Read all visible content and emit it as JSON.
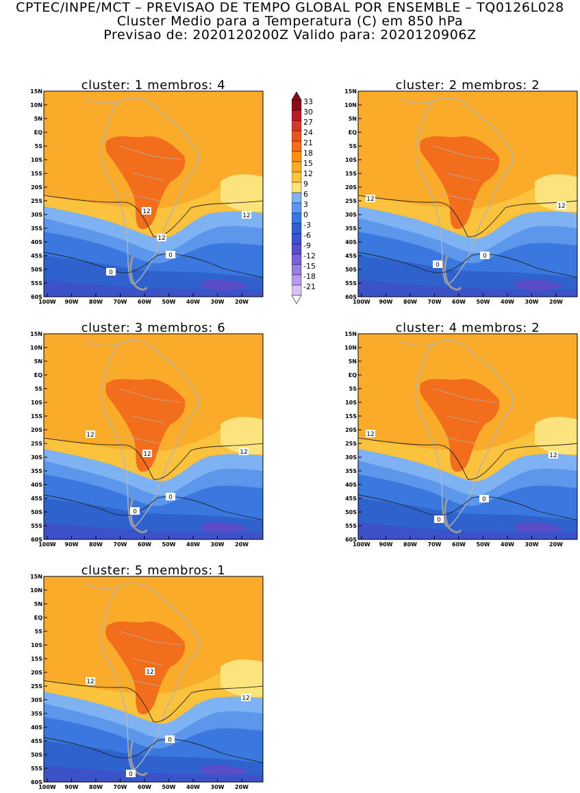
{
  "header": {
    "line1": "CPTEC/INPE/MCT – PREVISAO DE TEMPO GLOBAL POR ENSEMBLE – TQ0126L028",
    "line2": "Cluster Medio para a Temperatura (C) em 850 hPa",
    "line3": "Previsao de: 2020120200Z    Valido para: 2020120906Z"
  },
  "axes": {
    "lat_labels": [
      "15N",
      "10N",
      "5N",
      "EQ",
      "5S",
      "10S",
      "15S",
      "20S",
      "25S",
      "30S",
      "35S",
      "40S",
      "45S",
      "50S",
      "55S",
      "60S"
    ],
    "lon_labels": [
      "100W",
      "90W",
      "80W",
      "70W",
      "60W",
      "50W",
      "40W",
      "30W",
      "20W"
    ]
  },
  "colorbar": {
    "labels": [
      "33",
      "30",
      "27",
      "24",
      "21",
      "18",
      "15",
      "12",
      "9",
      "6",
      "3",
      "0",
      "-3",
      "-6",
      "-9",
      "-12",
      "-15",
      "-18",
      "-21"
    ],
    "colors": [
      "#8a0c18",
      "#b31e2a",
      "#d23a2e",
      "#e85524",
      "#f26e1c",
      "#f89212",
      "#fbab2a",
      "#fbc23e",
      "#fde37e",
      "#7fb2f2",
      "#5c97ec",
      "#3a78e0",
      "#2f62cc",
      "#3b52c8",
      "#5b4cc8",
      "#7a62d6",
      "#977fe0",
      "#b69cea",
      "#d6c2f4"
    ]
  },
  "panels": [
    {
      "title": "cluster: 1   membros: 4",
      "contour_labels": [
        "12",
        "12",
        "12",
        "0",
        "0"
      ]
    },
    {
      "title": "cluster: 2   membros: 2",
      "contour_labels": [
        "12",
        "12",
        "0",
        "0"
      ]
    },
    {
      "title": "cluster: 3   membros: 6",
      "contour_labels": [
        "12",
        "12",
        "12",
        "0",
        "0"
      ]
    },
    {
      "title": "cluster: 4   membros: 2",
      "contour_labels": [
        "12",
        "12",
        "0",
        "0"
      ]
    },
    {
      "title": "cluster: 5   membros: 1",
      "contour_labels": [
        "12",
        "12",
        "12",
        "0",
        "0"
      ]
    }
  ],
  "colors": {
    "land_outline": "#b4b4b4",
    "contour": "#222222"
  }
}
